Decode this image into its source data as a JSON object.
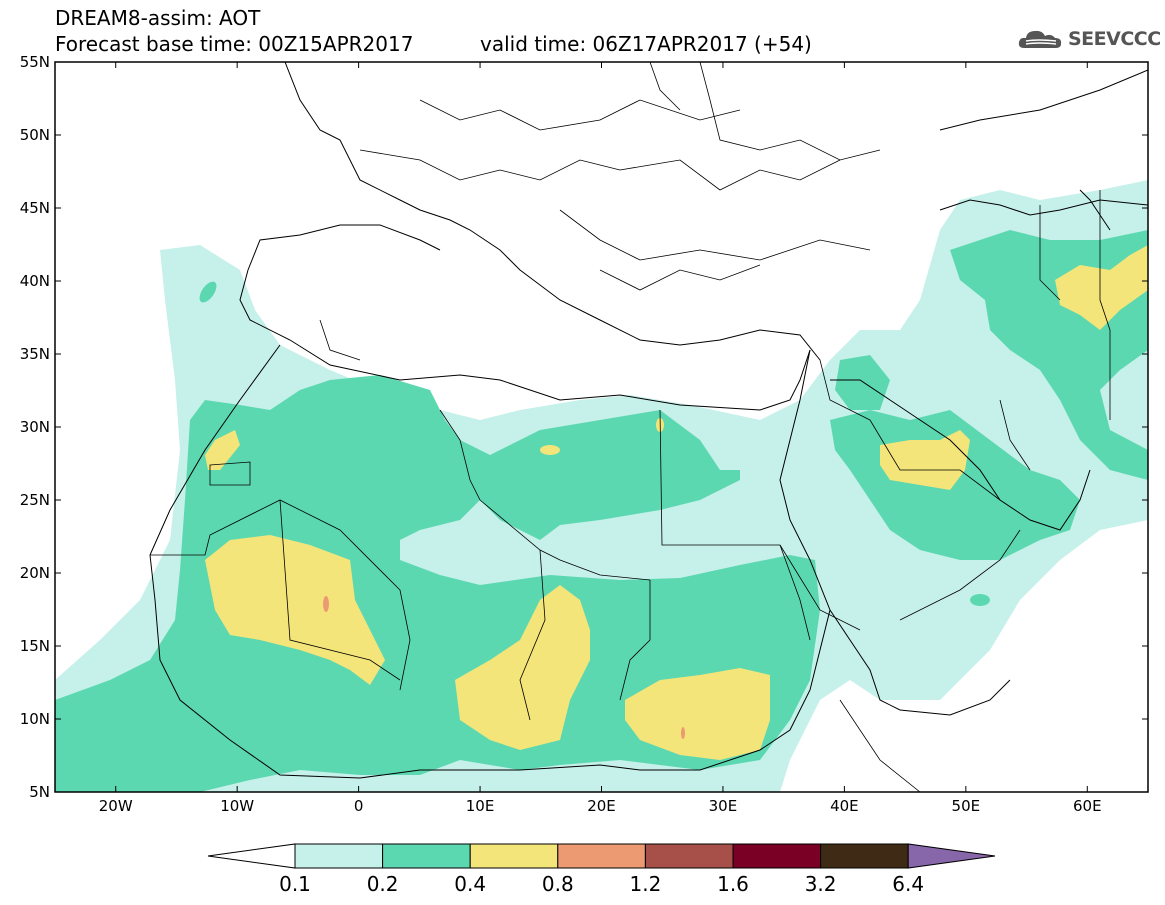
{
  "header": {
    "title_line1": "DREAM8-assim: AOT",
    "title_line2": "Forecast base time: 00Z15APR2017",
    "valid_time": "valid time: 06Z17APR2017 (+54)",
    "logo_text": "SEEVCCC"
  },
  "map": {
    "lon_range": [
      -25,
      65
    ],
    "lat_range": [
      5,
      55
    ],
    "lat_ticks": [
      "55N",
      "50N",
      "45N",
      "40N",
      "35N",
      "30N",
      "25N",
      "20N",
      "15N",
      "10N",
      "5N"
    ],
    "lon_ticks": [
      "20W",
      "10W",
      "0",
      "10E",
      "20E",
      "30E",
      "40E",
      "50E",
      "60E"
    ]
  },
  "legend": {
    "levels": [
      "0.1",
      "0.2",
      "0.4",
      "0.8",
      "1.2",
      "1.6",
      "3.2",
      "6.4"
    ],
    "colors": {
      "below_0.1": "#ffffff",
      "0.1-0.2": "#c6f0ea",
      "0.2-0.4": "#5cd8b0",
      "0.4-0.8": "#f4e57a",
      "0.8-1.2": "#ec9a72",
      "1.2-1.6": "#a7504a",
      "1.6-3.2": "#7a0026",
      "3.2-6.4": "#3f2a16",
      "above_6.4": "#8866aa"
    }
  }
}
